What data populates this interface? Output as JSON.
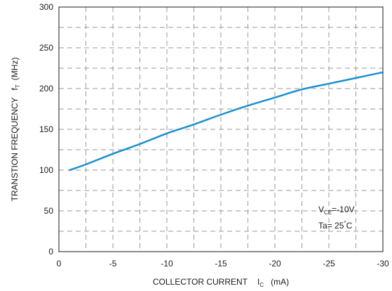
{
  "chart_data": {
    "type": "line",
    "xlim": [
      0,
      -30
    ],
    "ylim": [
      0,
      300
    ],
    "x_ticks": [
      "0",
      "-5",
      "-10",
      "-15",
      "-20",
      "-25",
      "-30"
    ],
    "y_ticks": [
      "0",
      "50",
      "100",
      "150",
      "200",
      "250",
      "300"
    ],
    "grid": "dashed, minor lines at every 2.5 mA and 25 MHz",
    "ylabel": {
      "main": "TRANSTION  FREQUENCY",
      "symbol": "f",
      "sub": "T",
      "unit": "(MHz)"
    },
    "xlabel": {
      "main": "COLLECTOR CURRENT",
      "symbol": "I",
      "sub": "C",
      "unit": "(mA)"
    },
    "annotations": {
      "vce_symbol": "V",
      "vce_sub": "CE",
      "vce_value": "=-10V",
      "ta_symbol": "Ta",
      "ta_value": "= 25",
      "ta_deg": "°",
      "ta_unit": "C"
    },
    "series": [
      {
        "color": "#1a8fd0",
        "x": [
          -1,
          -2.5,
          -5,
          -7.5,
          -10,
          -12.5,
          -15,
          -17.5,
          -20,
          -22.5,
          -25,
          -27.5,
          -30
        ],
        "y": [
          100,
          107,
          120,
          132,
          145,
          156,
          168,
          179,
          189,
          199,
          206,
          213,
          220
        ]
      }
    ]
  }
}
